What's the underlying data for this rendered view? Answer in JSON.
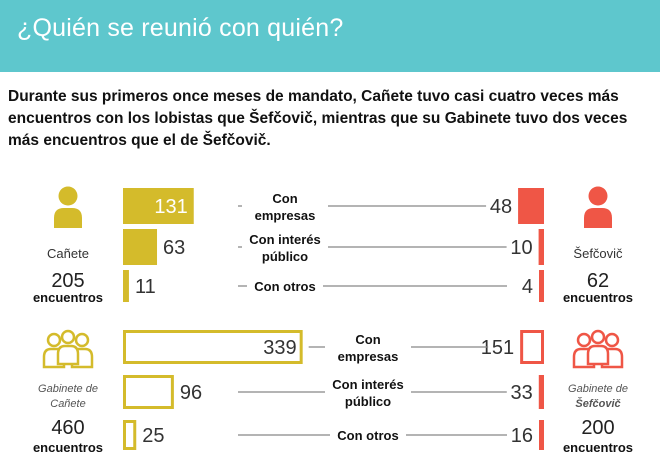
{
  "header": {
    "title": "¿Quién se reunió con quién?"
  },
  "intro": "Durante sus primeros once meses de mandato, Cañete tuvo casi cuatro veces más encuentros con los lobistas que Šefčovič, mientras que su Gabinete tuvo dos veces más encuentros que el de Šefčovič.",
  "colors": {
    "left": "#d4bb2b",
    "right": "#ef5646",
    "header": "#5ec7cd",
    "line": "#888888"
  },
  "chart_data": [
    {
      "type": "bar",
      "style": "filled",
      "left": {
        "name": "Cañete",
        "total": "205",
        "unit": "encuentros",
        "icon": "person-icon"
      },
      "right": {
        "name": "Šefčovič",
        "total": "62",
        "unit": "encuentros",
        "icon": "person-icon"
      },
      "categories": [
        [
          "Con",
          "empresas"
        ],
        [
          "Con interés",
          "público"
        ],
        [
          "Con otros"
        ]
      ],
      "series": [
        {
          "name": "Cañete",
          "values": [
            131,
            63,
            11
          ]
        },
        {
          "name": "Šefčovič",
          "values": [
            48,
            10,
            4
          ]
        }
      ]
    },
    {
      "type": "bar",
      "style": "outline",
      "left": {
        "name": "Gabinete de Cañete",
        "total": "460",
        "unit": "encuentros",
        "icon": "group-icon"
      },
      "right": {
        "name": "Gabinete de Šefčovič",
        "total": "200",
        "unit": "encuentros",
        "icon": "group-icon"
      },
      "categories": [
        [
          "Con",
          "empresas"
        ],
        [
          "Con interés",
          "público"
        ],
        [
          "Con otros"
        ]
      ],
      "series": [
        {
          "name": "Gabinete de Cañete",
          "values": [
            339,
            96,
            25
          ]
        },
        {
          "name": "Gabinete de Šefčovič",
          "values": [
            151,
            33,
            16
          ]
        }
      ]
    }
  ]
}
